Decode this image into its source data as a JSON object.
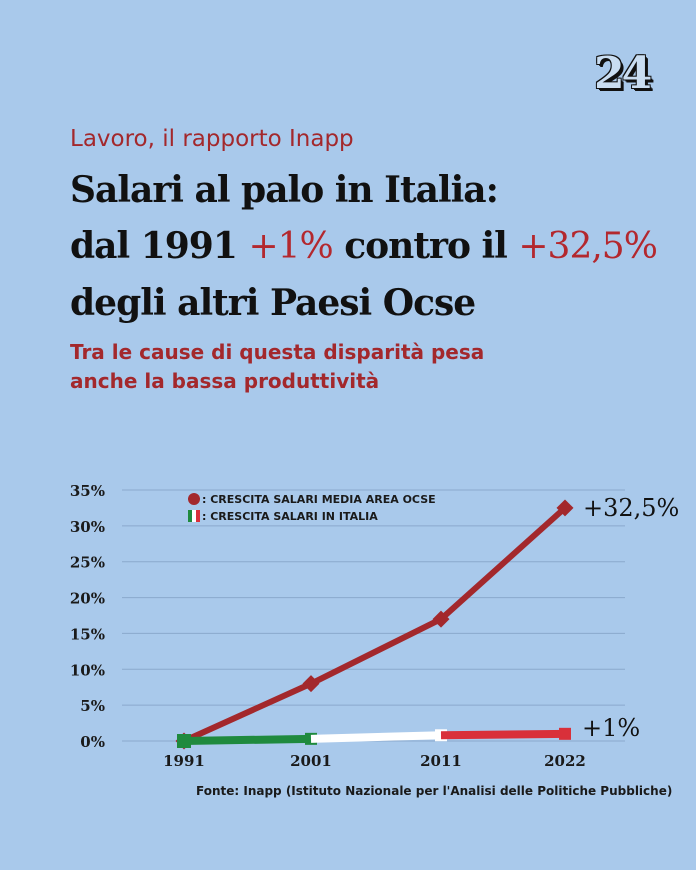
{
  "logo": "24",
  "kicker": "Lavoro, il rapporto Inapp",
  "title": {
    "line1": "Salari al palo in Italia:",
    "line2_a": "dal 1991 ",
    "line2_hl1": "+1%",
    "line2_b": " contro il ",
    "line2_hl2": "+32,5%",
    "line3": "degli altri Paesi Ocse"
  },
  "subtitle": {
    "line1": "Tra le cause di questa disparità pesa",
    "line2": "anche la bassa produttività"
  },
  "source": "Fonte: Inapp (Istituto Nazionale per l'Analisi delle Politiche Pubbliche)",
  "colors": {
    "background": "#a9c9eb",
    "accent": "#a3282c",
    "italy_green": "#1f8a3e",
    "italy_white": "#ffffff",
    "italy_red": "#d9303a"
  },
  "chart_data": {
    "type": "line",
    "categories": [
      "1991",
      "2001",
      "2011",
      "2022"
    ],
    "yticks": [
      "0%",
      "5%",
      "10%",
      "15%",
      "20%",
      "25%",
      "30%",
      "35%"
    ],
    "ylim": [
      0,
      35
    ],
    "grid": true,
    "legend_placement": "top-left",
    "series": [
      {
        "name": ": CRESCITA SALARI MEDIA AREA OCSE",
        "values": [
          0,
          8,
          17,
          32.5
        ],
        "end_label": "+32,5%",
        "color": "#a3282c"
      },
      {
        "name": ": CRESCITA SALARI IN ITALIA",
        "values": [
          0,
          0.3,
          0.8,
          1
        ],
        "end_label": "+1%",
        "colors": [
          "#1f8a3e",
          "#ffffff",
          "#d9303a"
        ]
      }
    ]
  }
}
